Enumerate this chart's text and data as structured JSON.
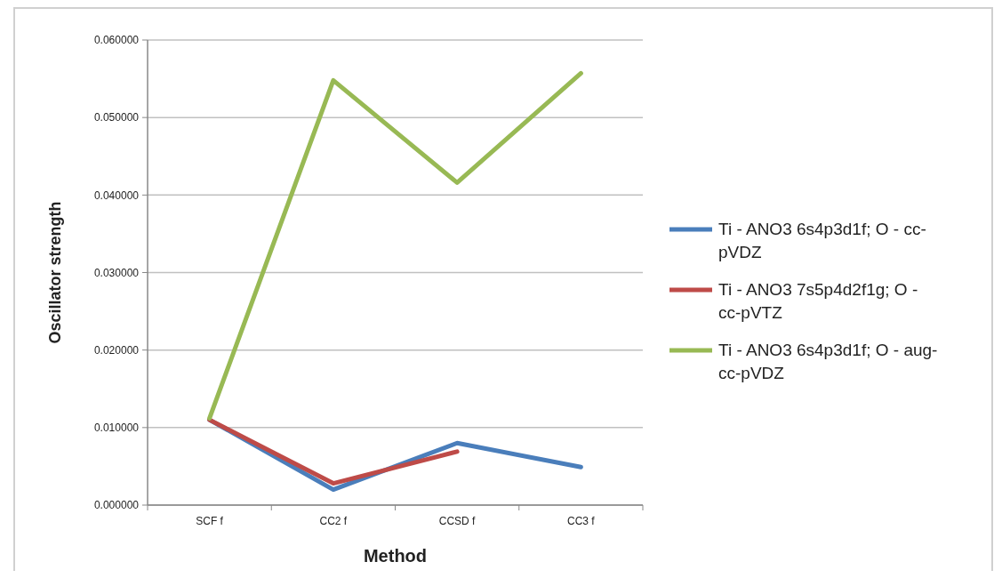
{
  "chart_data": {
    "type": "line",
    "xlabel": "Method",
    "ylabel": "Oscillator strength",
    "categories": [
      "SCF f",
      "CC2 f",
      "CCSD f",
      "CC3 f"
    ],
    "series": [
      {
        "name": "Ti - ANO3 6s4p3d1f; O - cc-pVDZ",
        "color": "#4a7ebb",
        "values": [
          0.011,
          0.002,
          0.008,
          0.0049
        ]
      },
      {
        "name": "Ti - ANO3 7s5p4d2f1g; O - cc-pVTZ",
        "color": "#be4b48",
        "values": [
          0.011,
          0.0028,
          0.0069,
          null
        ]
      },
      {
        "name": "Ti - ANO3 6s4p3d1f; O - aug-cc-pVDZ",
        "color": "#98b954",
        "values": [
          0.0112,
          0.0548,
          0.0416,
          0.0557
        ]
      }
    ],
    "ylim": [
      0,
      0.06
    ],
    "yticks": [
      {
        "value": 0,
        "label": "0.000000"
      },
      {
        "value": 0.01,
        "label": "0.010000"
      },
      {
        "value": 0.02,
        "label": "0.020000"
      },
      {
        "value": 0.03,
        "label": "0.030000"
      },
      {
        "value": 0.04,
        "label": "0.040000"
      },
      {
        "value": 0.05,
        "label": "0.050000"
      },
      {
        "value": 0.06,
        "label": "0.060000"
      }
    ],
    "grid": "y",
    "legend": "right",
    "marker": "none",
    "line_style": "solid"
  }
}
